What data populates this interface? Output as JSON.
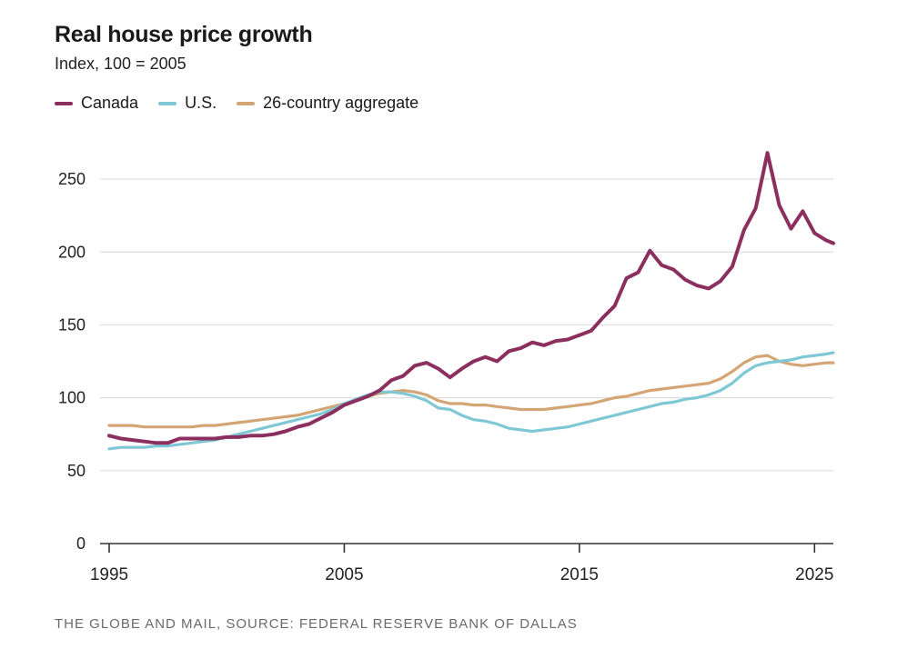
{
  "header": {
    "title": "Real house price growth",
    "subtitle": "Index, 100 = 2005"
  },
  "footer": {
    "source": "THE GLOBE AND MAIL, SOURCE: FEDERAL RESERVE BANK OF DALLAS"
  },
  "colors": {
    "canada": "#8b2f5e",
    "us": "#7ec8d6",
    "aggregate": "#d4a574",
    "grid": "#dddddd",
    "axis": "#333333"
  },
  "chart_data": {
    "type": "line",
    "title": "Real house price growth",
    "subtitle": "Index, 100 = 2005",
    "xlabel": "",
    "ylabel": "",
    "xlim": [
      1995,
      2025
    ],
    "ylim": [
      0,
      270
    ],
    "xticks": [
      1995,
      2005,
      2015,
      2025
    ],
    "yticks": [
      0,
      50,
      100,
      150,
      200,
      250
    ],
    "grid": true,
    "legend_position": "top-left",
    "series": [
      {
        "name": "Canada",
        "color_key": "canada",
        "points": [
          [
            1995.0,
            74
          ],
          [
            1995.5,
            72
          ],
          [
            1996.0,
            71
          ],
          [
            1996.5,
            70
          ],
          [
            1997.0,
            69
          ],
          [
            1997.5,
            69
          ],
          [
            1998.0,
            72
          ],
          [
            1998.5,
            72
          ],
          [
            1999.0,
            72
          ],
          [
            1999.5,
            72
          ],
          [
            2000.0,
            73
          ],
          [
            2000.5,
            73
          ],
          [
            2001.0,
            74
          ],
          [
            2001.5,
            74
          ],
          [
            2002.0,
            75
          ],
          [
            2002.5,
            77
          ],
          [
            2003.0,
            80
          ],
          [
            2003.5,
            82
          ],
          [
            2004.0,
            86
          ],
          [
            2004.5,
            90
          ],
          [
            2005.0,
            95
          ],
          [
            2005.5,
            98
          ],
          [
            2006.0,
            101
          ],
          [
            2006.5,
            105
          ],
          [
            2007.0,
            112
          ],
          [
            2007.5,
            115
          ],
          [
            2008.0,
            122
          ],
          [
            2008.5,
            124
          ],
          [
            2009.0,
            120
          ],
          [
            2009.5,
            114
          ],
          [
            2010.0,
            120
          ],
          [
            2010.5,
            125
          ],
          [
            2011.0,
            128
          ],
          [
            2011.5,
            125
          ],
          [
            2012.0,
            132
          ],
          [
            2012.5,
            134
          ],
          [
            2013.0,
            138
          ],
          [
            2013.5,
            136
          ],
          [
            2014.0,
            139
          ],
          [
            2014.5,
            140
          ],
          [
            2015.0,
            143
          ],
          [
            2015.5,
            146
          ],
          [
            2016.0,
            155
          ],
          [
            2016.5,
            163
          ],
          [
            2017.0,
            182
          ],
          [
            2017.5,
            186
          ],
          [
            2018.0,
            201
          ],
          [
            2018.5,
            191
          ],
          [
            2019.0,
            188
          ],
          [
            2019.5,
            181
          ],
          [
            2020.0,
            177
          ],
          [
            2020.5,
            175
          ],
          [
            2021.0,
            180
          ],
          [
            2021.5,
            190
          ],
          [
            2022.0,
            215
          ],
          [
            2022.5,
            230
          ],
          [
            2023.0,
            268
          ],
          [
            2023.5,
            232
          ],
          [
            2024.0,
            216
          ],
          [
            2024.5,
            228
          ],
          [
            2025.0,
            213
          ],
          [
            2025.5,
            208
          ],
          [
            2025.8,
            206
          ]
        ]
      },
      {
        "name": "U.S.",
        "color_key": "us",
        "points": [
          [
            1995.0,
            65
          ],
          [
            1995.5,
            66
          ],
          [
            1996.0,
            66
          ],
          [
            1996.5,
            66
          ],
          [
            1997.0,
            67
          ],
          [
            1997.5,
            67
          ],
          [
            1998.0,
            68
          ],
          [
            1998.5,
            69
          ],
          [
            1999.0,
            70
          ],
          [
            1999.5,
            71
          ],
          [
            2000.0,
            73
          ],
          [
            2000.5,
            75
          ],
          [
            2001.0,
            77
          ],
          [
            2001.5,
            79
          ],
          [
            2002.0,
            81
          ],
          [
            2002.5,
            83
          ],
          [
            2003.0,
            85
          ],
          [
            2003.5,
            87
          ],
          [
            2004.0,
            89
          ],
          [
            2004.5,
            92
          ],
          [
            2005.0,
            96
          ],
          [
            2005.5,
            99
          ],
          [
            2006.0,
            102
          ],
          [
            2006.5,
            104
          ],
          [
            2007.0,
            104
          ],
          [
            2007.5,
            103
          ],
          [
            2008.0,
            101
          ],
          [
            2008.5,
            98
          ],
          [
            2009.0,
            93
          ],
          [
            2009.5,
            92
          ],
          [
            2010.0,
            88
          ],
          [
            2010.5,
            85
          ],
          [
            2011.0,
            84
          ],
          [
            2011.5,
            82
          ],
          [
            2012.0,
            79
          ],
          [
            2012.5,
            78
          ],
          [
            2013.0,
            77
          ],
          [
            2013.5,
            78
          ],
          [
            2014.0,
            79
          ],
          [
            2014.5,
            80
          ],
          [
            2015.0,
            82
          ],
          [
            2015.5,
            84
          ],
          [
            2016.0,
            86
          ],
          [
            2016.5,
            88
          ],
          [
            2017.0,
            90
          ],
          [
            2017.5,
            92
          ],
          [
            2018.0,
            94
          ],
          [
            2018.5,
            96
          ],
          [
            2019.0,
            97
          ],
          [
            2019.5,
            99
          ],
          [
            2020.0,
            100
          ],
          [
            2020.5,
            102
          ],
          [
            2021.0,
            105
          ],
          [
            2021.5,
            110
          ],
          [
            2022.0,
            117
          ],
          [
            2022.5,
            122
          ],
          [
            2023.0,
            124
          ],
          [
            2023.5,
            125
          ],
          [
            2024.0,
            126
          ],
          [
            2024.5,
            128
          ],
          [
            2025.0,
            129
          ],
          [
            2025.5,
            130
          ],
          [
            2025.8,
            131
          ]
        ]
      },
      {
        "name": "26-country aggregate",
        "color_key": "aggregate",
        "points": [
          [
            1995.0,
            81
          ],
          [
            1995.5,
            81
          ],
          [
            1996.0,
            81
          ],
          [
            1996.5,
            80
          ],
          [
            1997.0,
            80
          ],
          [
            1997.5,
            80
          ],
          [
            1998.0,
            80
          ],
          [
            1998.5,
            80
          ],
          [
            1999.0,
            81
          ],
          [
            1999.5,
            81
          ],
          [
            2000.0,
            82
          ],
          [
            2000.5,
            83
          ],
          [
            2001.0,
            84
          ],
          [
            2001.5,
            85
          ],
          [
            2002.0,
            86
          ],
          [
            2002.5,
            87
          ],
          [
            2003.0,
            88
          ],
          [
            2003.5,
            90
          ],
          [
            2004.0,
            92
          ],
          [
            2004.5,
            94
          ],
          [
            2005.0,
            96
          ],
          [
            2005.5,
            98
          ],
          [
            2006.0,
            101
          ],
          [
            2006.5,
            103
          ],
          [
            2007.0,
            104
          ],
          [
            2007.5,
            105
          ],
          [
            2008.0,
            104
          ],
          [
            2008.5,
            102
          ],
          [
            2009.0,
            98
          ],
          [
            2009.5,
            96
          ],
          [
            2010.0,
            96
          ],
          [
            2010.5,
            95
          ],
          [
            2011.0,
            95
          ],
          [
            2011.5,
            94
          ],
          [
            2012.0,
            93
          ],
          [
            2012.5,
            92
          ],
          [
            2013.0,
            92
          ],
          [
            2013.5,
            92
          ],
          [
            2014.0,
            93
          ],
          [
            2014.5,
            94
          ],
          [
            2015.0,
            95
          ],
          [
            2015.5,
            96
          ],
          [
            2016.0,
            98
          ],
          [
            2016.5,
            100
          ],
          [
            2017.0,
            101
          ],
          [
            2017.5,
            103
          ],
          [
            2018.0,
            105
          ],
          [
            2018.5,
            106
          ],
          [
            2019.0,
            107
          ],
          [
            2019.5,
            108
          ],
          [
            2020.0,
            109
          ],
          [
            2020.5,
            110
          ],
          [
            2021.0,
            113
          ],
          [
            2021.5,
            118
          ],
          [
            2022.0,
            124
          ],
          [
            2022.5,
            128
          ],
          [
            2023.0,
            129
          ],
          [
            2023.5,
            125
          ],
          [
            2024.0,
            123
          ],
          [
            2024.5,
            122
          ],
          [
            2025.0,
            123
          ],
          [
            2025.5,
            124
          ],
          [
            2025.8,
            124
          ]
        ]
      }
    ]
  }
}
